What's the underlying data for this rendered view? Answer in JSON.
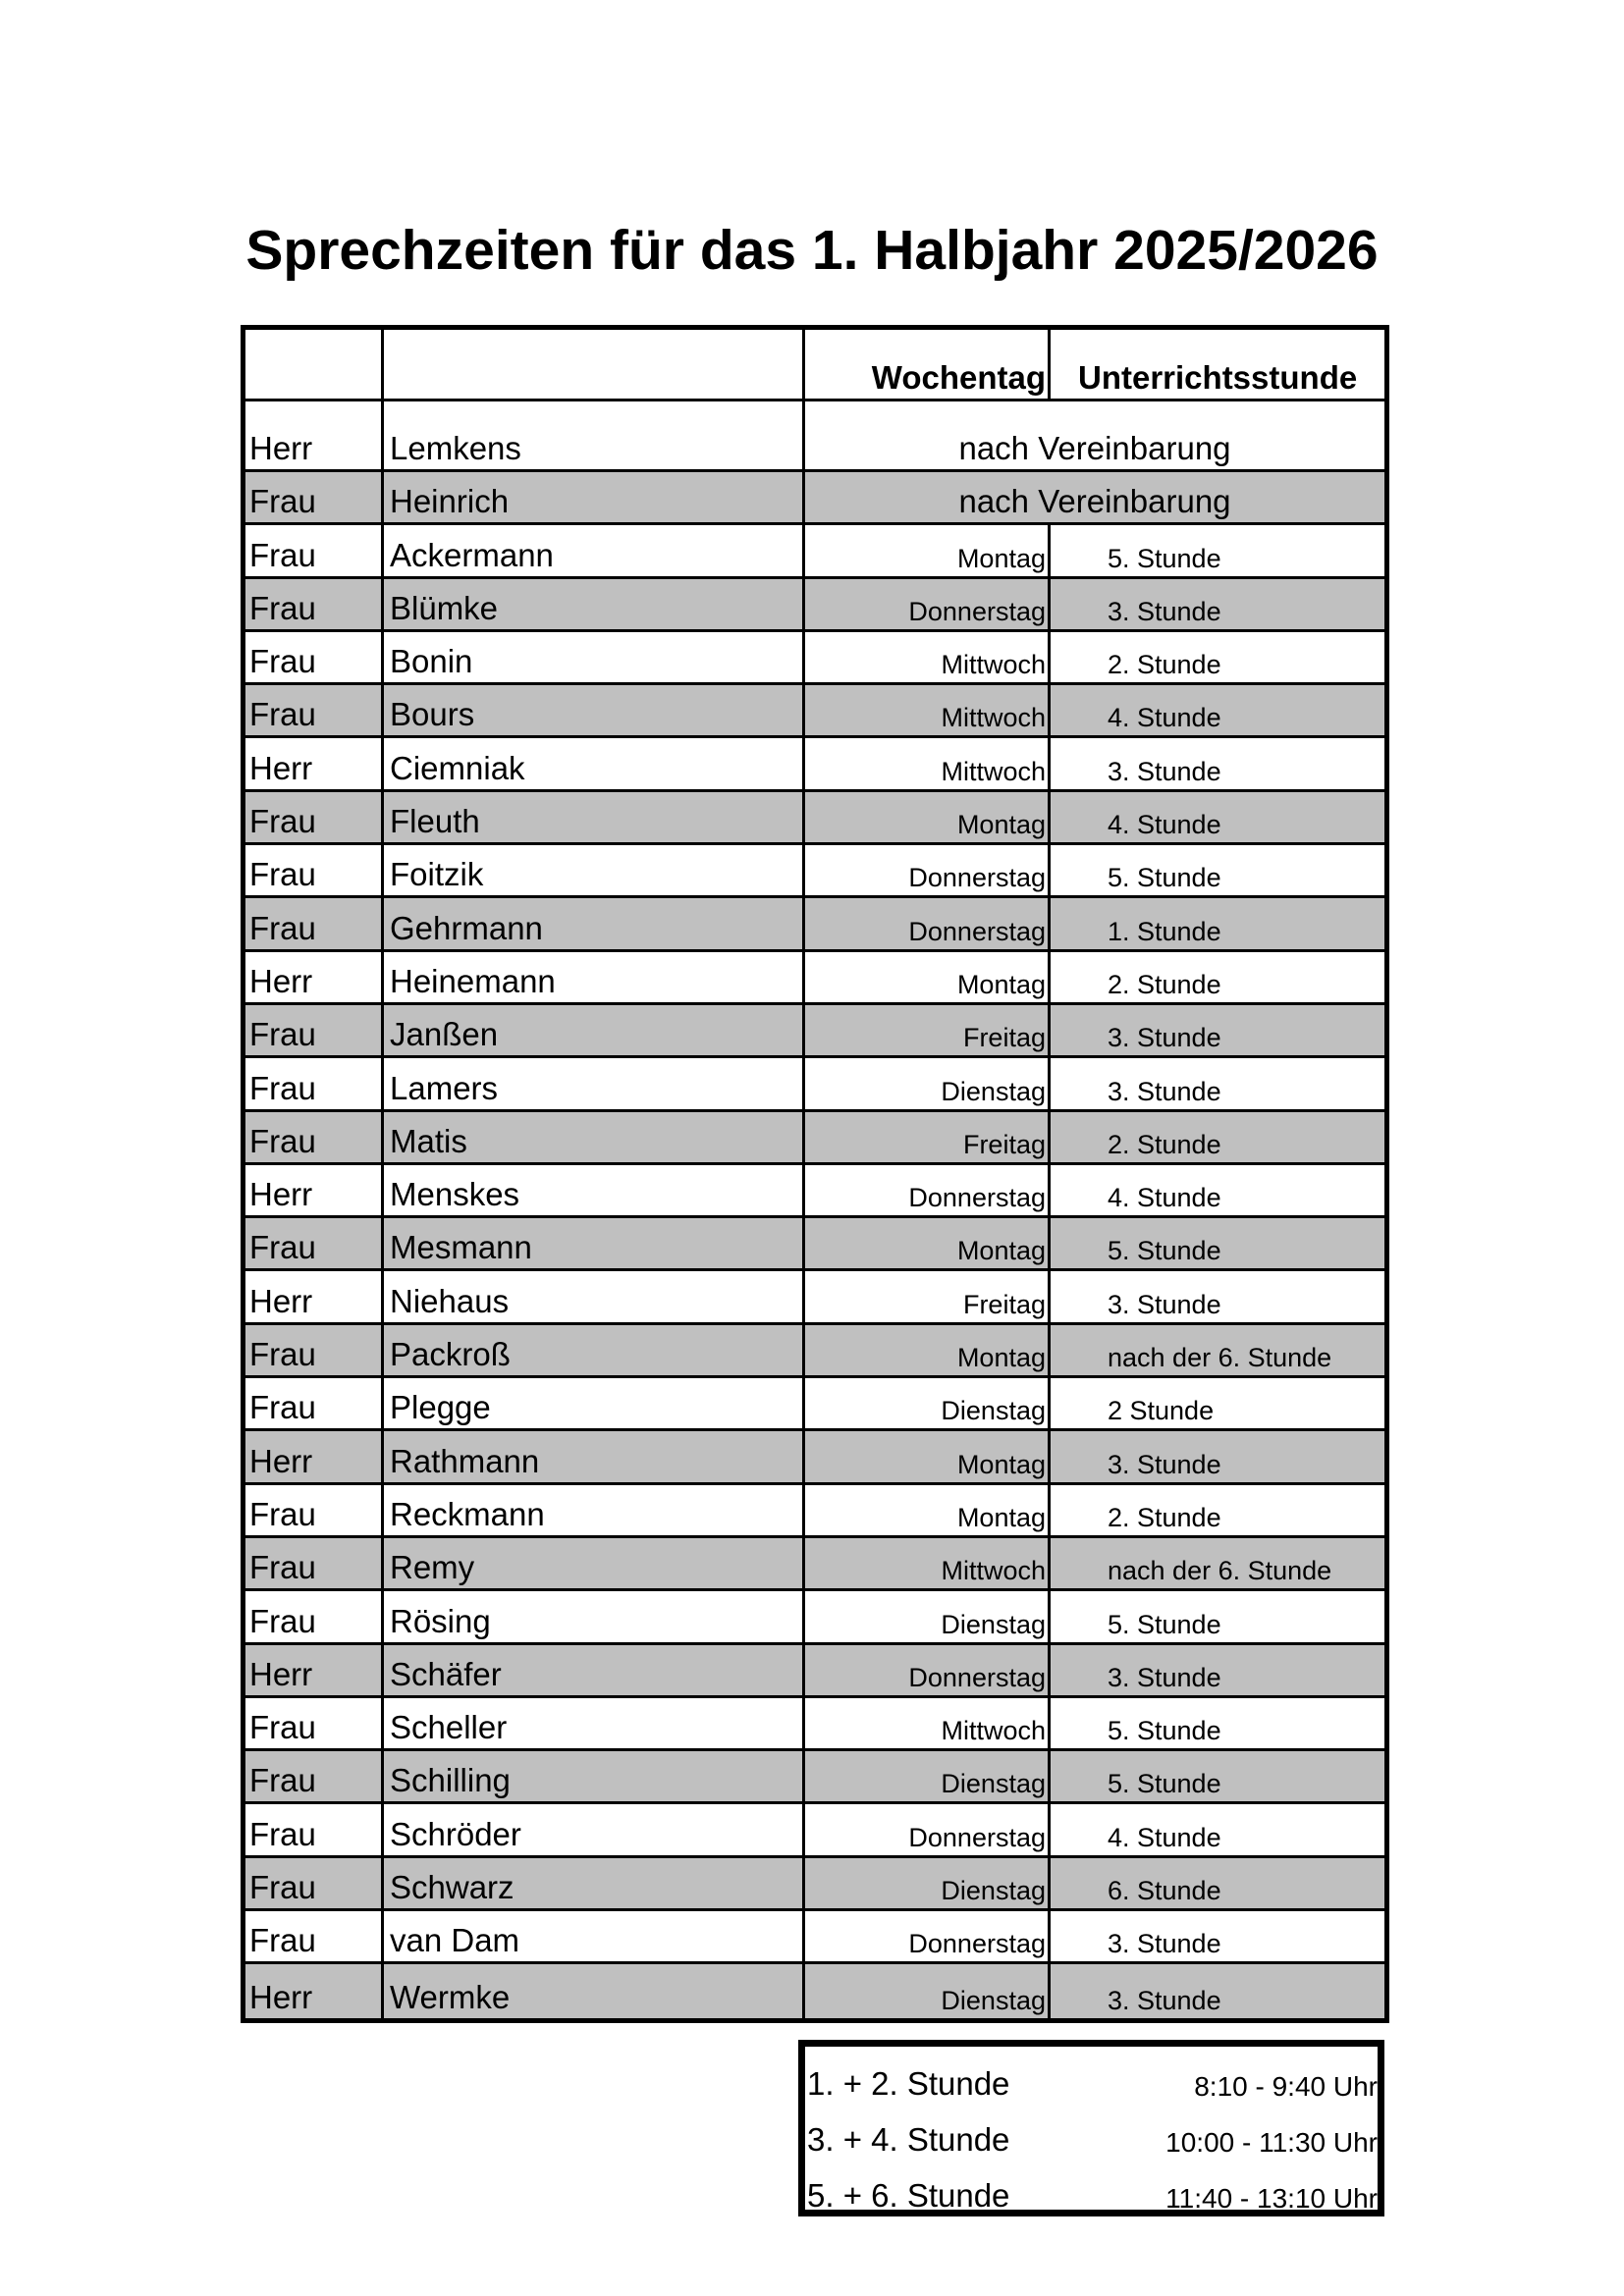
{
  "title": "Sprechzeiten für das 1. Halbjahr 2025/2026",
  "table": {
    "headers": {
      "col1": "",
      "col2": "",
      "weekday": "Wochentag",
      "lesson": "Unterrichtsstunde"
    },
    "colors": {
      "shade": "#c0c0c0",
      "border": "#000000"
    },
    "rows": [
      {
        "title": "Herr",
        "name": "Lemkens",
        "merged": "nach Vereinbarung"
      },
      {
        "title": "Frau",
        "name": "Heinrich",
        "merged": "nach Vereinbarung"
      },
      {
        "title": "Frau",
        "name": "Ackermann",
        "day": "Montag",
        "lesson": "5. Stunde"
      },
      {
        "title": "Frau",
        "name": "Blümke",
        "day": "Donnerstag",
        "lesson": "3. Stunde"
      },
      {
        "title": "Frau",
        "name": "Bonin",
        "day": "Mittwoch",
        "lesson": "2. Stunde"
      },
      {
        "title": "Frau",
        "name": "Bours",
        "day": "Mittwoch",
        "lesson": "4. Stunde"
      },
      {
        "title": "Herr",
        "name": "Ciemniak",
        "day": "Mittwoch",
        "lesson": "3. Stunde"
      },
      {
        "title": "Frau",
        "name": "Fleuth",
        "day": "Montag",
        "lesson": "4. Stunde"
      },
      {
        "title": "Frau",
        "name": "Foitzik",
        "day": "Donnerstag",
        "lesson": "5. Stunde"
      },
      {
        "title": "Frau",
        "name": "Gehrmann",
        "day": "Donnerstag",
        "lesson": "1. Stunde"
      },
      {
        "title": "Herr",
        "name": "Heinemann",
        "day": "Montag",
        "lesson": "2. Stunde"
      },
      {
        "title": "Frau",
        "name": "Janßen",
        "day": "Freitag",
        "lesson": "3. Stunde"
      },
      {
        "title": "Frau",
        "name": "Lamers",
        "day": "Dienstag",
        "lesson": "3. Stunde"
      },
      {
        "title": "Frau",
        "name": "Matis",
        "day": "Freitag",
        "lesson": "2. Stunde"
      },
      {
        "title": "Herr",
        "name": "Menskes",
        "day": "Donnerstag",
        "lesson": "4. Stunde"
      },
      {
        "title": "Frau",
        "name": "Mesmann",
        "day": "Montag",
        "lesson": "5. Stunde"
      },
      {
        "title": "Herr",
        "name": "Niehaus",
        "day": "Freitag",
        "lesson": "3. Stunde"
      },
      {
        "title": "Frau",
        "name": "Packroß",
        "day": "Montag",
        "lesson": "nach der 6. Stunde"
      },
      {
        "title": "Frau",
        "name": "Plegge",
        "day": "Dienstag",
        "lesson": " 2 Stunde"
      },
      {
        "title": "Herr",
        "name": "Rathmann",
        "day": "Montag",
        "lesson": "3. Stunde"
      },
      {
        "title": "Frau",
        "name": "Reckmann",
        "day": "Montag",
        "lesson": "2. Stunde"
      },
      {
        "title": "Frau",
        "name": "Remy",
        "day": "Mittwoch",
        "lesson": "nach der 6. Stunde"
      },
      {
        "title": "Frau",
        "name": "Rösing",
        "day": "Dienstag",
        "lesson": "5. Stunde"
      },
      {
        "title": "Herr",
        "name": "Schäfer",
        "day": "Donnerstag",
        "lesson": "3. Stunde"
      },
      {
        "title": "Frau",
        "name": "Scheller",
        "day": "Mittwoch",
        "lesson": "5. Stunde"
      },
      {
        "title": "Frau",
        "name": "Schilling",
        "day": "Dienstag",
        "lesson": "5. Stunde"
      },
      {
        "title": "Frau",
        "name": "Schröder",
        "day": "Donnerstag",
        "lesson": "4. Stunde"
      },
      {
        "title": "Frau",
        "name": "Schwarz",
        "day": "Dienstag",
        "lesson": "6. Stunde"
      },
      {
        "title": "Frau",
        "name": "van Dam",
        "day": "Donnerstag",
        "lesson": "3. Stunde"
      },
      {
        "title": "Herr",
        "name": "Wermke",
        "day": "Dienstag",
        "lesson": "3. Stunde"
      }
    ]
  },
  "times": [
    {
      "label": "1. + 2. Stunde",
      "time": "8:10  -  9:40 Uhr"
    },
    {
      "label": "3. + 4. Stunde",
      "time": "10:00 - 11:30 Uhr"
    },
    {
      "label": "5. + 6. Stunde",
      "time": "11:40 - 13:10 Uhr"
    }
  ]
}
